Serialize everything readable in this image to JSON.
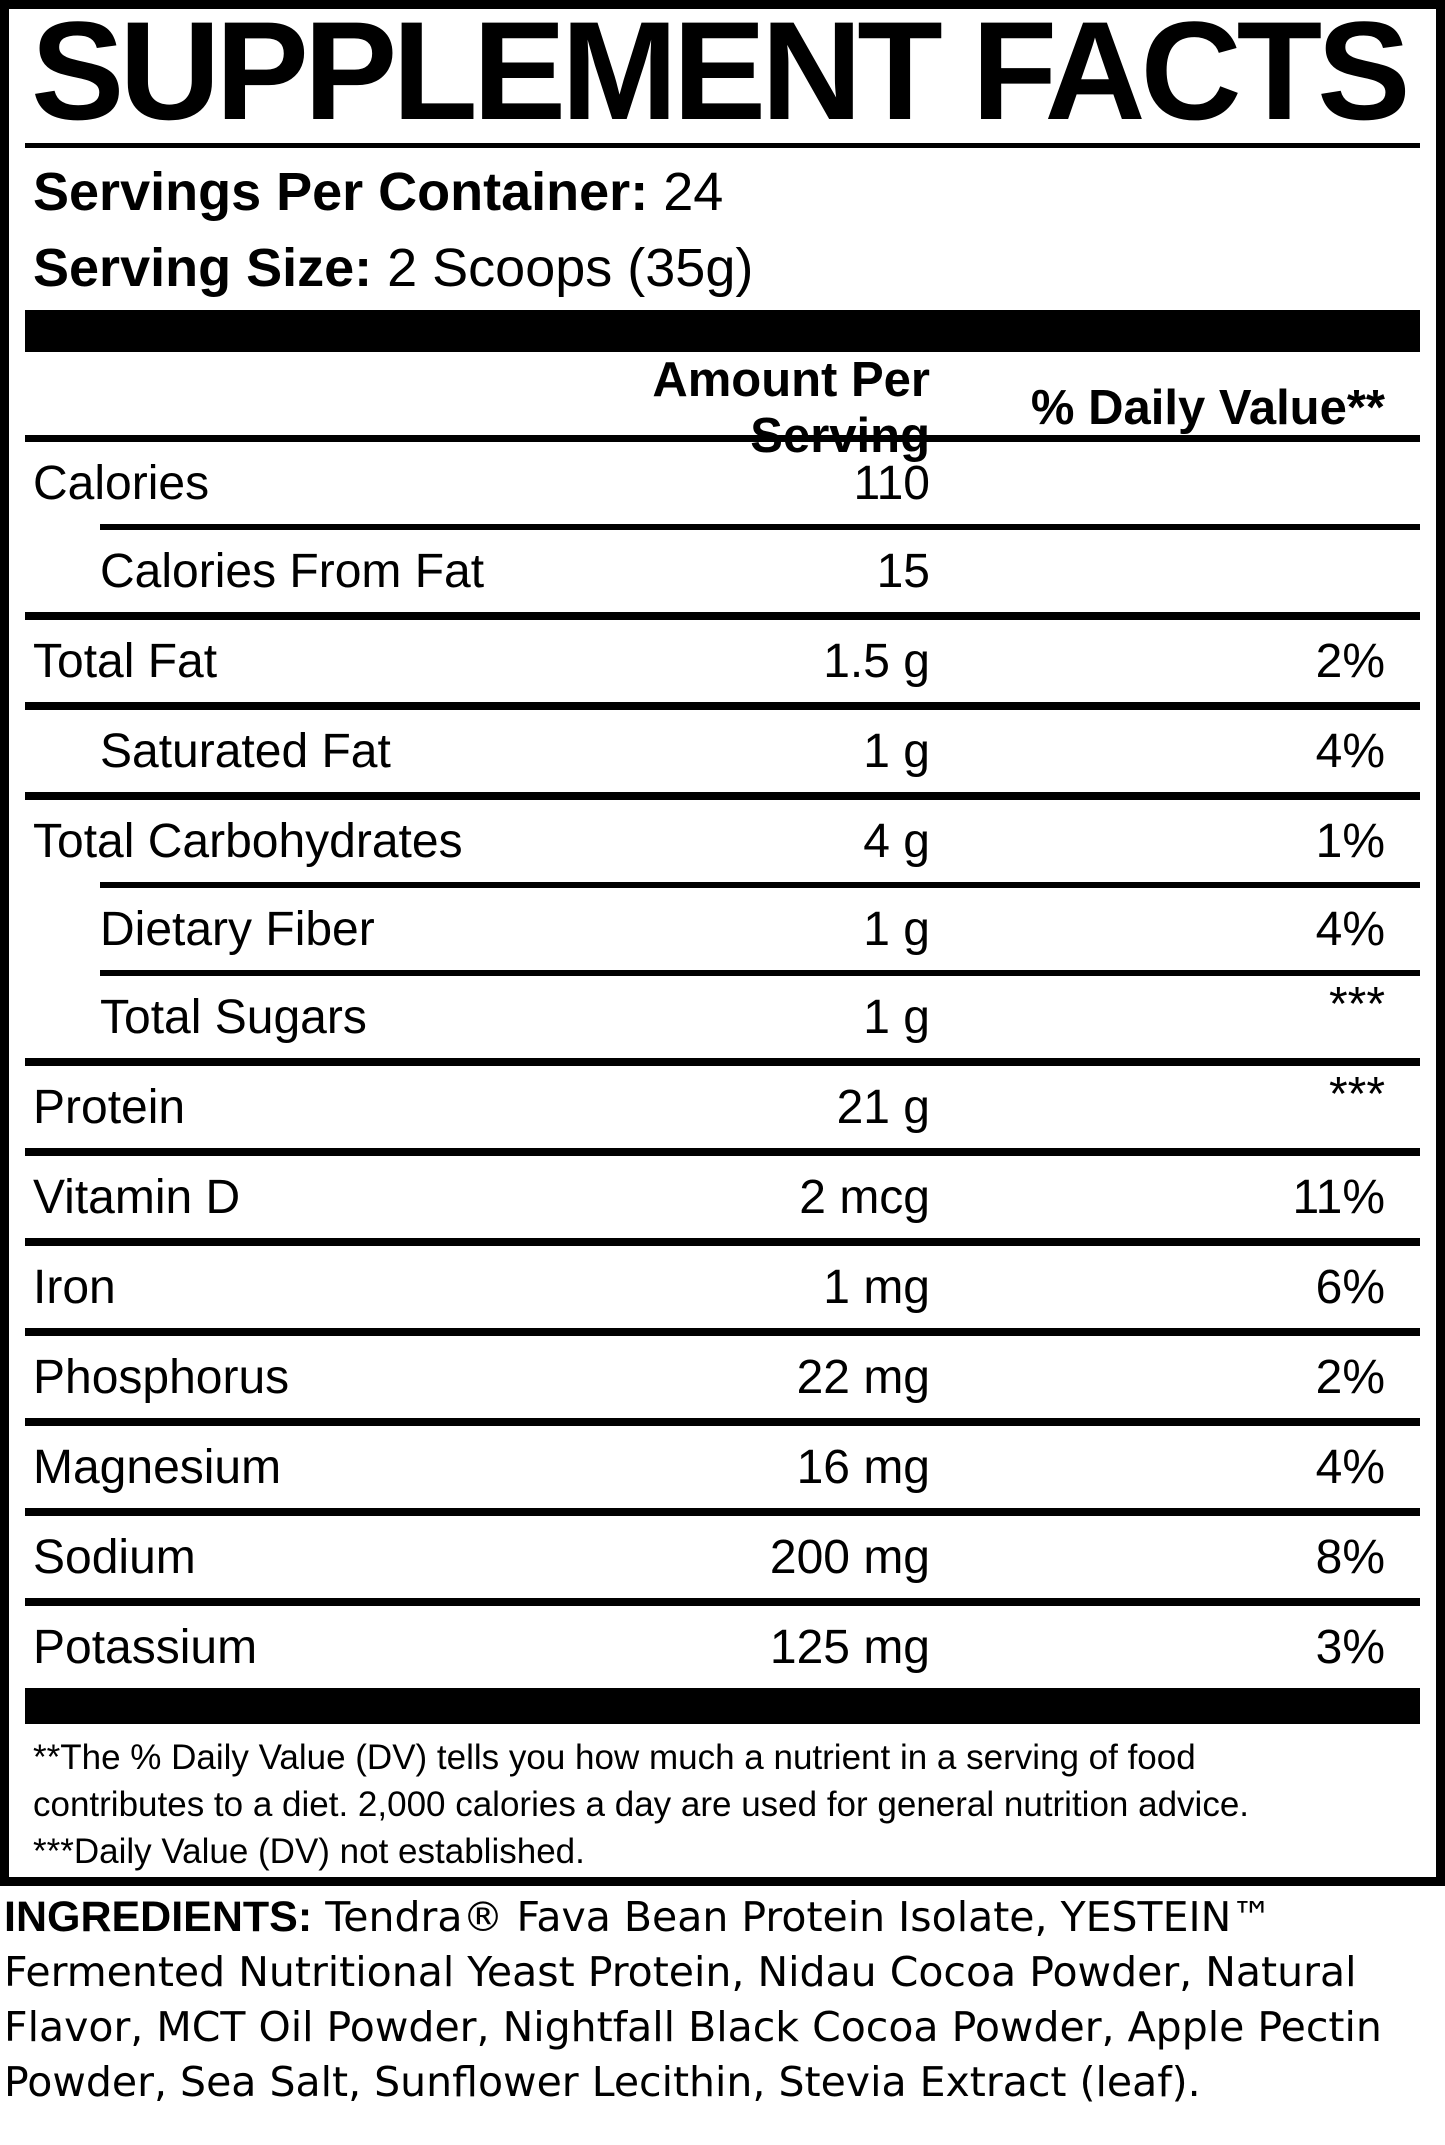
{
  "colors": {
    "ink": "#000000",
    "paper": "#ffffff"
  },
  "title": "SUPPLEMENT FACTS",
  "serving_info": {
    "servings_per_container_label": "Servings Per Container:",
    "servings_per_container_value": "24",
    "serving_size_label": "Serving Size:",
    "serving_size_value": "2 Scoops (35g)"
  },
  "table": {
    "amount_header": "Amount Per Serving",
    "daily_value_header": "% Daily Value**",
    "rows": [
      {
        "name": "Calories",
        "amount": "110",
        "daily_value": "",
        "indent": false,
        "divider_above": "none"
      },
      {
        "name": "Calories From Fat",
        "amount": "15",
        "daily_value": "",
        "indent": true,
        "divider_above": "indent"
      },
      {
        "name": "Total Fat",
        "amount": "1.5 g",
        "daily_value": "2%",
        "indent": false,
        "divider_above": "full"
      },
      {
        "name": "Saturated Fat",
        "amount": "1 g",
        "daily_value": "4%",
        "indent": true,
        "divider_above": "full"
      },
      {
        "name": "Total Carbohydrates",
        "amount": "4 g",
        "daily_value": "1%",
        "indent": false,
        "divider_above": "full"
      },
      {
        "name": "Dietary Fiber",
        "amount": "1 g",
        "daily_value": "4%",
        "indent": true,
        "divider_above": "indent"
      },
      {
        "name": "Total Sugars",
        "amount": "1 g",
        "daily_value": "***",
        "indent": true,
        "divider_above": "indent"
      },
      {
        "name": "Protein",
        "amount": "21 g",
        "daily_value": "***",
        "indent": false,
        "divider_above": "full"
      },
      {
        "name": "Vitamin D",
        "amount": "2 mcg",
        "daily_value": "11%",
        "indent": false,
        "divider_above": "full"
      },
      {
        "name": "Iron",
        "amount": "1 mg",
        "daily_value": "6%",
        "indent": false,
        "divider_above": "full"
      },
      {
        "name": "Phosphorus",
        "amount": "22 mg",
        "daily_value": "2%",
        "indent": false,
        "divider_above": "full"
      },
      {
        "name": "Magnesium",
        "amount": "16 mg",
        "daily_value": "4%",
        "indent": false,
        "divider_above": "full"
      },
      {
        "name": "Sodium",
        "amount": "200 mg",
        "daily_value": "8%",
        "indent": false,
        "divider_above": "full"
      },
      {
        "name": "Potassium",
        "amount": "125 mg",
        "daily_value": "3%",
        "indent": false,
        "divider_above": "full"
      }
    ]
  },
  "footnotes": {
    "daily_value_note": "**The % Daily Value (DV) tells you how much a nutrient in a serving of food contributes to a diet. 2,000 calories a day are used for general nutrition advice.",
    "not_established_note": "***Daily Value (DV) not established."
  },
  "ingredients": {
    "label": "INGREDIENTS:",
    "text": " Tendra® Fava Bean Protein Isolate, YESTEIN™ Fermented Nutritional Yeast Protein, Nidau Cocoa Powder, Natural Flavor, MCT Oil Powder, Nightfall Black Cocoa Powder, Apple Pectin Powder, Sea Salt, Sunflower Lecithin, Stevia Extract (leaf)."
  }
}
